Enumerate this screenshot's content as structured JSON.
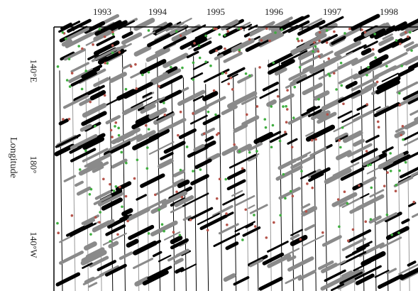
{
  "figure": {
    "x_labels": [
      "1993",
      "1994",
      "1995",
      "1996",
      "1997",
      "1998"
    ],
    "y_labels": [
      "140°E",
      "180°",
      "140°W"
    ],
    "y_axis_label": "Longitude"
  }
}
